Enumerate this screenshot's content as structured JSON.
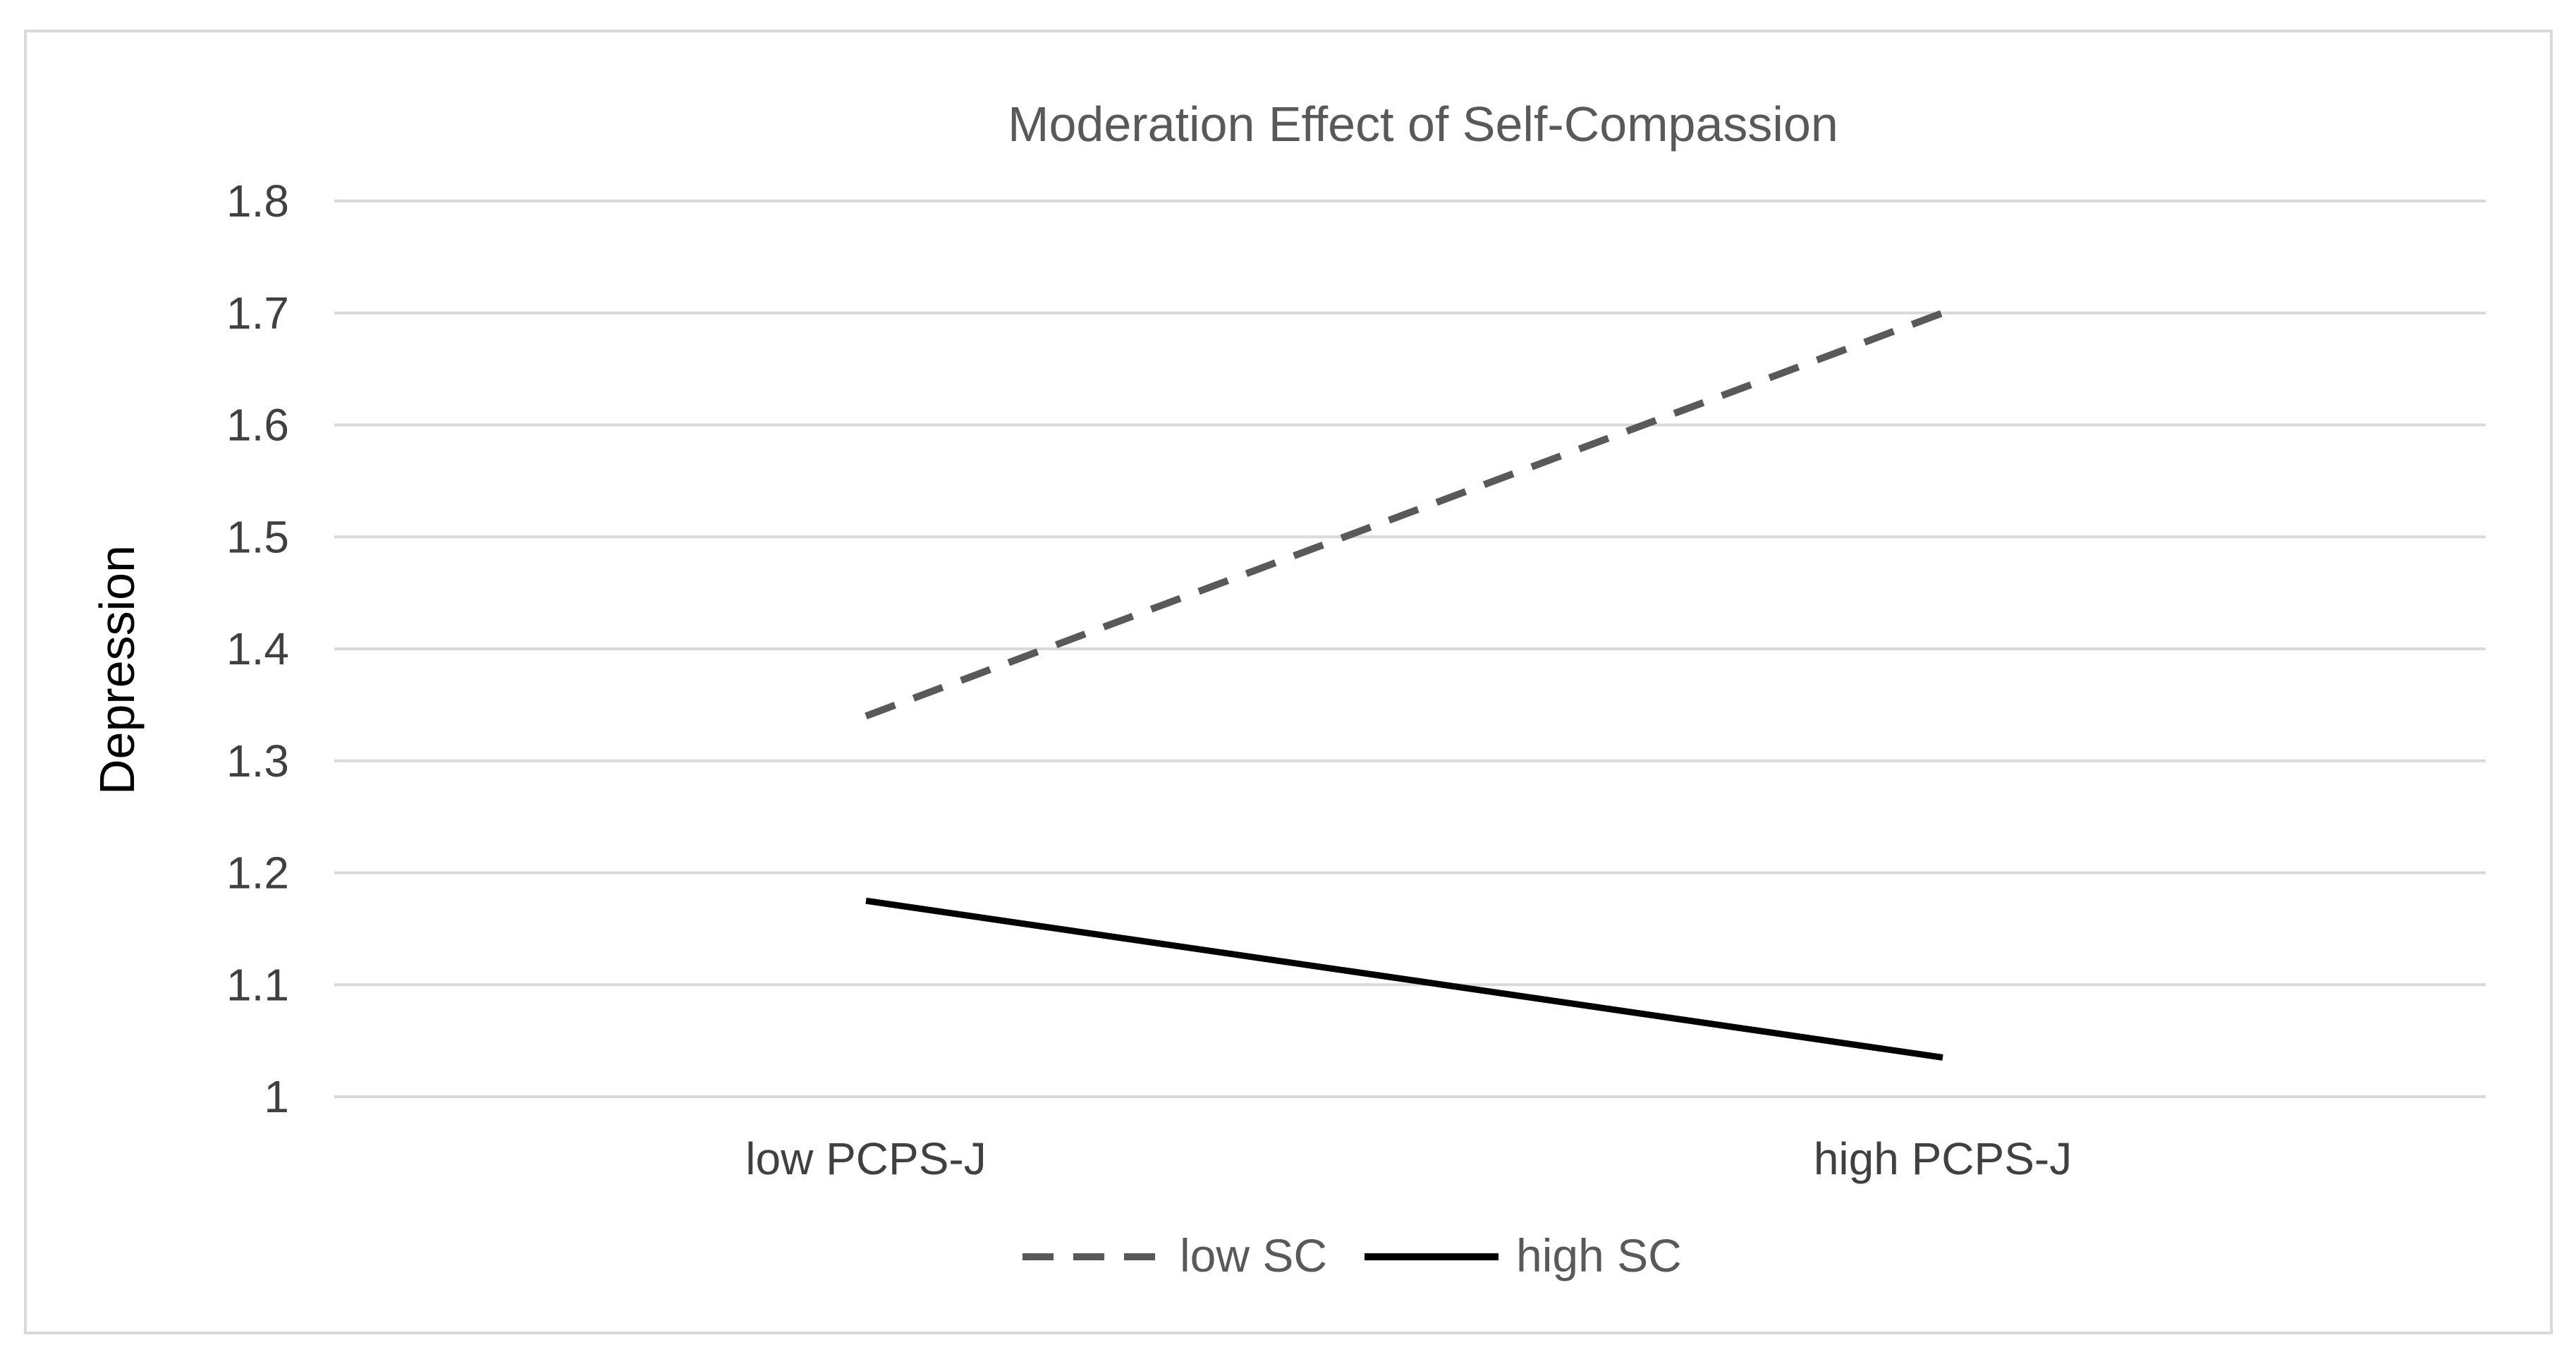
{
  "chart_data": {
    "type": "line",
    "title": "Moderation Effect of Self-Compassion",
    "xlabel": "",
    "ylabel": "Depression",
    "categories": [
      "low PCPS-J",
      "high PCPS-J"
    ],
    "y_ticks": [
      "1",
      "1.1",
      "1.2",
      "1.3",
      "1.4",
      "1.5",
      "1.6",
      "1.7",
      "1.8"
    ],
    "ylim": [
      1,
      1.8
    ],
    "grid": true,
    "legend_position": "bottom",
    "series": [
      {
        "name": "low SC",
        "values": [
          1.34,
          1.7
        ],
        "style": "dashed",
        "color": "#595959"
      },
      {
        "name": "high SC",
        "values": [
          1.175,
          1.035
        ],
        "style": "solid",
        "color": "#000000"
      }
    ]
  }
}
